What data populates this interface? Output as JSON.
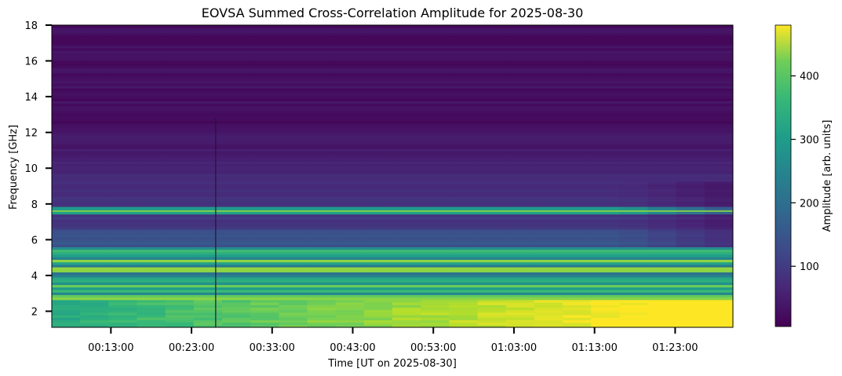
{
  "chart_data": {
    "type": "heatmap",
    "title": "EOVSA Summed Cross-Correlation Amplitude for 2025-08-30",
    "xlabel": "Time [UT on 2025-08-30]",
    "ylabel": "Frequency [GHz]",
    "x_tick_labels": [
      "00:13:00",
      "00:23:00",
      "00:33:00",
      "00:43:00",
      "00:53:00",
      "01:03:00",
      "01:13:00",
      "01:23:00"
    ],
    "y_ticks": [
      2,
      4,
      6,
      8,
      10,
      12,
      14,
      16,
      18
    ],
    "xlim": [
      "00:05:40",
      "01:30:10"
    ],
    "ylim": [
      1.1,
      18
    ],
    "colorbar": {
      "label": "Amplitude [arb. units]",
      "ticks": [
        100,
        200,
        300,
        400
      ],
      "range": [
        5,
        480
      ],
      "colormap": "viridis"
    },
    "features": {
      "strong_emission_band_ghz": [
        1.1,
        5.6
      ],
      "narrow_line_ghz": 7.6,
      "vertical_dropout_time": "00:26:00"
    }
  }
}
